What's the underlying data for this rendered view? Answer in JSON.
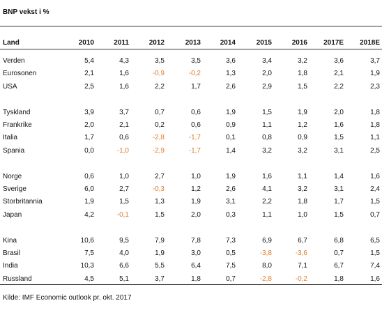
{
  "title": "BNP vekst i %",
  "table": {
    "header": [
      "Land",
      "2010",
      "2011",
      "2012",
      "2013",
      "2014",
      "2015",
      "2016",
      "2017E",
      "2018E"
    ],
    "groups": [
      [
        [
          "Verden",
          "5,4",
          "4,3",
          "3,5",
          "3,5",
          "3,6",
          "3,4",
          "3,2",
          "3,6",
          "3,7"
        ],
        [
          "Eurosonen",
          "2,1",
          "1,6",
          "-0,9",
          "-0,2",
          "1,3",
          "2,0",
          "1,8",
          "2,1",
          "1,9"
        ],
        [
          "USA",
          "2,5",
          "1,6",
          "2,2",
          "1,7",
          "2,6",
          "2,9",
          "1,5",
          "2,2",
          "2,3"
        ]
      ],
      [
        [
          "Tyskland",
          "3,9",
          "3,7",
          "0,7",
          "0,6",
          "1,9",
          "1,5",
          "1,9",
          "2,0",
          "1,8"
        ],
        [
          "Frankrike",
          "2,0",
          "2,1",
          "0,2",
          "0,6",
          "0,9",
          "1,1",
          "1,2",
          "1,6",
          "1,8"
        ],
        [
          "Italia",
          "1,7",
          "0,6",
          "-2,8",
          "-1,7",
          "0,1",
          "0,8",
          "0,9",
          "1,5",
          "1,1"
        ],
        [
          "Spania",
          "0,0",
          "-1,0",
          "-2,9",
          "-1,7",
          "1,4",
          "3,2",
          "3,2",
          "3,1",
          "2,5"
        ]
      ],
      [
        [
          "Norge",
          "0,6",
          "1,0",
          "2,7",
          "1,0",
          "1,9",
          "1,6",
          "1,1",
          "1,4",
          "1,6"
        ],
        [
          "Sverige",
          "6,0",
          "2,7",
          "-0,3",
          "1,2",
          "2,6",
          "4,1",
          "3,2",
          "3,1",
          "2,4"
        ],
        [
          "Storbritannia",
          "1,9",
          "1,5",
          "1,3",
          "1,9",
          "3,1",
          "2,2",
          "1,8",
          "1,7",
          "1,5"
        ],
        [
          "Japan",
          "4,2",
          "-0,1",
          "1,5",
          "2,0",
          "0,3",
          "1,1",
          "1,0",
          "1,5",
          "0,7"
        ]
      ],
      [
        [
          "Kina",
          "10,6",
          "9,5",
          "7,9",
          "7,8",
          "7,3",
          "6,9",
          "6,7",
          "6,8",
          "6,5"
        ],
        [
          "Brasil",
          "7,5",
          "4,0",
          "1,9",
          "3,0",
          "0,5",
          "-3,8",
          "-3,6",
          "0,7",
          "1,5"
        ],
        [
          "India",
          "10,3",
          "6,6",
          "5,5",
          "6,4",
          "7,5",
          "8,0",
          "7,1",
          "6,7",
          "7,4"
        ],
        [
          "Russland",
          "4,5",
          "5,1",
          "3,7",
          "1,8",
          "0,7",
          "-2,8",
          "-0,2",
          "1,8",
          "1,6"
        ]
      ]
    ]
  },
  "source": "Kilde: IMF Economic outlook pr. okt. 2017"
}
